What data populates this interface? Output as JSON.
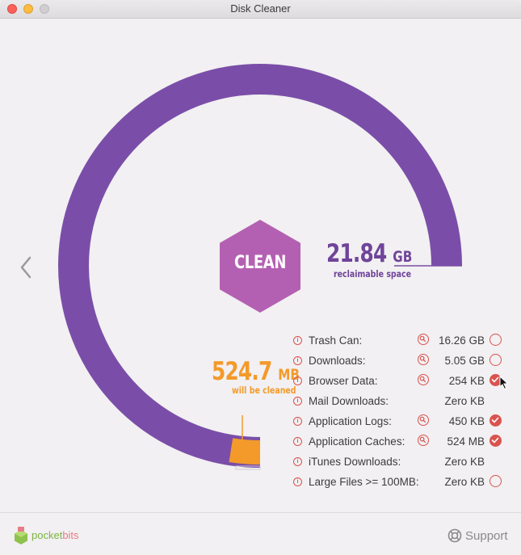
{
  "window": {
    "title": "Disk Cleaner"
  },
  "colors": {
    "ring": "#7a4ea8",
    "clean_hex": "#b460b2",
    "reclaimable": "#6f4499",
    "cleaned": "#f39a2a",
    "accent": "#d9534f"
  },
  "main": {
    "clean_button_label": "CLEAN",
    "reclaimable": {
      "value": "21.84",
      "unit": "GB",
      "label": "reclaimable space"
    },
    "to_clean": {
      "value": "524.7",
      "unit": "MB",
      "label": "will be cleaned"
    },
    "ring_fill_fraction": 0.75,
    "cleaned_fraction": 0.025
  },
  "items": [
    {
      "label": "Trash Can:",
      "size": "16.26 GB",
      "has_zoom": true,
      "checkbox": true,
      "checked": false
    },
    {
      "label": "Downloads:",
      "size": "5.05 GB",
      "has_zoom": true,
      "checkbox": true,
      "checked": false
    },
    {
      "label": "Browser Data:",
      "size": "254 KB",
      "has_zoom": true,
      "checkbox": true,
      "checked": true
    },
    {
      "label": "Mail Downloads:",
      "size": "Zero KB",
      "has_zoom": false,
      "checkbox": false,
      "checked": false
    },
    {
      "label": "Application Logs:",
      "size": "450 KB",
      "has_zoom": true,
      "checkbox": true,
      "checked": true
    },
    {
      "label": "Application Caches:",
      "size": "524 MB",
      "has_zoom": true,
      "checkbox": true,
      "checked": true
    },
    {
      "label": "iTunes Downloads:",
      "size": "Zero KB",
      "has_zoom": false,
      "checkbox": false,
      "checked": false
    },
    {
      "label": "Large Files >= 100MB:",
      "size": "Zero KB",
      "has_zoom": false,
      "checkbox": true,
      "checked": false
    }
  ],
  "footer": {
    "brand_part1": "pocket",
    "brand_part2": "bits",
    "support_label": "Support"
  },
  "icons": {
    "back": "chevron-left-icon",
    "info": "info-icon",
    "zoom": "magnifier-icon",
    "check": "checkmark-icon",
    "support": "lifebuoy-icon",
    "brand": "pocketbits-logo"
  }
}
